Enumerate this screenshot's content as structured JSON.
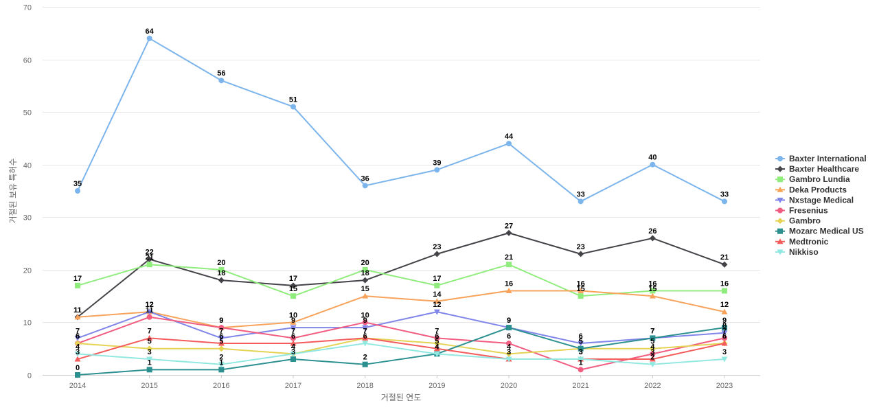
{
  "chart_data": {
    "type": "line",
    "title": "",
    "xlabel": "거절된 연도",
    "ylabel": "거절된 보유 특허수",
    "x": [
      "2014",
      "2015",
      "2016",
      "2017",
      "2018",
      "2019",
      "2020",
      "2021",
      "2022",
      "2023"
    ],
    "ylim": [
      0,
      70
    ],
    "yticks": [
      0,
      10,
      20,
      30,
      40,
      50,
      60,
      70
    ],
    "grid": true,
    "legend_position": "right",
    "series": [
      {
        "name": "Baxter International",
        "color": "#7cb5ec",
        "marker": "circle",
        "values": [
          35,
          64,
          56,
          51,
          36,
          39,
          44,
          33,
          40,
          33
        ]
      },
      {
        "name": "Baxter Healthcare",
        "color": "#434348",
        "marker": "diamond",
        "values": [
          11,
          22,
          18,
          17,
          18,
          23,
          27,
          23,
          26,
          21
        ]
      },
      {
        "name": "Gambro Lundia",
        "color": "#90ed7d",
        "marker": "square",
        "values": [
          17,
          21,
          20,
          15,
          20,
          17,
          21,
          15,
          16,
          16
        ]
      },
      {
        "name": "Deka Products",
        "color": "#f7a35c",
        "marker": "triangle",
        "values": [
          11,
          12,
          9,
          10,
          15,
          14,
          16,
          16,
          15,
          12
        ]
      },
      {
        "name": "Nxstage Medical",
        "color": "#8085e9",
        "marker": "triangle-down",
        "values": [
          7,
          12,
          7,
          9,
          9,
          12,
          9,
          6,
          7,
          8
        ]
      },
      {
        "name": "Fresenius",
        "color": "#f15c80",
        "marker": "circle",
        "values": [
          6,
          11,
          9,
          7,
          10,
          7,
          6,
          1,
          4,
          7
        ]
      },
      {
        "name": "Gambro",
        "color": "#e4d354",
        "marker": "diamond",
        "values": [
          6,
          5,
          5,
          4,
          7,
          6,
          4,
          5,
          5,
          6
        ]
      },
      {
        "name": "Mozarc Medical US",
        "color": "#2b908f",
        "marker": "square",
        "values": [
          0,
          1,
          1,
          3,
          2,
          4,
          9,
          5,
          7,
          9
        ]
      },
      {
        "name": "Medtronic",
        "color": "#f45b5b",
        "marker": "triangle",
        "values": [
          3,
          7,
          6,
          6,
          7,
          5,
          3,
          3,
          3,
          6
        ]
      },
      {
        "name": "Nikkiso",
        "color": "#91e8e1",
        "marker": "triangle-down",
        "values": [
          4,
          3,
          2,
          4,
          6,
          4,
          3,
          3,
          2,
          3
        ]
      }
    ]
  }
}
